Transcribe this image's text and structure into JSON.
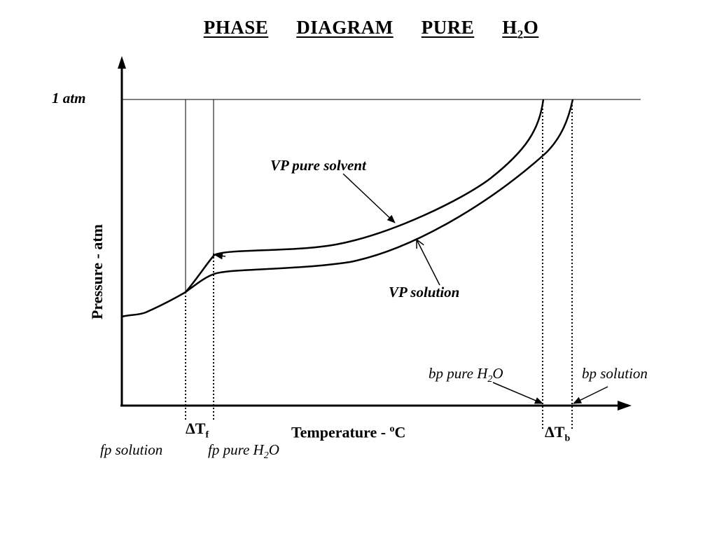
{
  "title": {
    "word1": "PHASE",
    "word2": "DIAGRAM",
    "word3": "PURE",
    "h": "H",
    "sub": "2",
    "o": "O"
  },
  "axes": {
    "y_label": "Pressure - atm",
    "x_label_prefix": "Temperature - ",
    "x_label_sup": "o",
    "x_label_suffix": "C",
    "p_ref_label": "1 atm"
  },
  "curves": {
    "pure_solvent_label": "VP pure solvent",
    "solution_label": "VP solution"
  },
  "annotations": {
    "delta": "ΔT",
    "delta_tf_sub": "f",
    "delta_tb_sub": "b",
    "fp_solution": "fp solution",
    "fp_pure_prefix": "fp pure H",
    "fp_pure_sub": "2",
    "fp_pure_suffix": "O",
    "bp_pure_prefix": "bp pure H",
    "bp_pure_sub": "2",
    "bp_pure_suffix": "O",
    "bp_solution": "bp solution"
  },
  "colors": {
    "line": "#000000",
    "background": "#ffffff"
  }
}
